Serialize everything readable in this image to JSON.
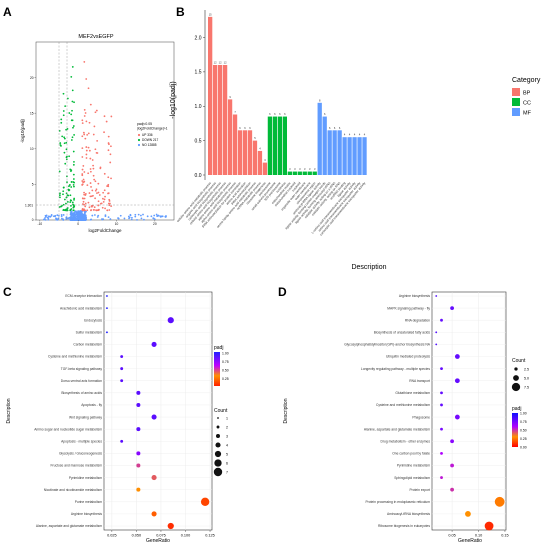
{
  "panel_letters": [
    "A",
    "B",
    "C",
    "D"
  ],
  "colors": {
    "bp": "#f8766d",
    "cc": "#00ba38",
    "mf": "#619cff",
    "up": "#f8766d",
    "down": "#00ba38",
    "no": "#619cff",
    "padj_gradient": [
      "#0000ff",
      "#7f00ff",
      "#ff00ff",
      "#ff8000",
      "#ff0000"
    ]
  },
  "chart_data": [
    {
      "type": "scatter",
      "panel": "A",
      "title": "MEF2vsEGFP",
      "xlabel": "log2FoldChange",
      "ylabel": "-log10(padj)",
      "xlim": [
        -11,
        25
      ],
      "ylim": [
        0,
        25
      ],
      "x_ticks": [
        "-10",
        "0",
        "10",
        "20"
      ],
      "y_ticks": [
        "0",
        "5",
        "10",
        "15",
        "20"
      ],
      "threshold_label": "1.301",
      "legend": {
        "title": "padj<0.05\n|log2FoldChange|>1",
        "items": [
          {
            "name": "UP 336",
            "color": "#f8766d"
          },
          {
            "name": "DOWN 217",
            "color": "#00ba38"
          },
          {
            "name": "NO 12885",
            "color": "#619cff"
          }
        ]
      }
    },
    {
      "type": "bar",
      "panel": "B",
      "xlabel": "Description",
      "ylabel": "-log10(padj)",
      "ylim": [
        0,
        2.4
      ],
      "y_ticks": [
        "0.0",
        "0.5",
        "1.0",
        "1.5",
        "2.0"
      ],
      "legend": {
        "title": "Category",
        "items": [
          {
            "name": "BP",
            "color": "#f8766d"
          },
          {
            "name": "CC",
            "color": "#00ba38"
          },
          {
            "name": "MF",
            "color": "#619cff"
          }
        ]
      },
      "bars": [
        {
          "label": "cellular amino acid metabolic process",
          "value": 2.3,
          "count": "15",
          "cat": "BP"
        },
        {
          "label": "organic acid biosynthetic process",
          "value": 1.6,
          "count": "12",
          "cat": "BP"
        },
        {
          "label": "carboxylic acid biosynthetic process",
          "value": 1.6,
          "count": "12",
          "cat": "BP"
        },
        {
          "label": "cellular amino acid biosynthetic process",
          "value": 1.6,
          "count": "12",
          "cat": "BP"
        },
        {
          "label": "alpha-amino acid metabolic process",
          "value": 1.1,
          "count": "9",
          "cat": "BP"
        },
        {
          "label": "alpha-amino acid biosynthetic process",
          "value": 0.88,
          "count": "7",
          "cat": "BP"
        },
        {
          "label": "tRNA aminoacylation for protein translation",
          "value": 0.65,
          "count": "6",
          "cat": "BP"
        },
        {
          "label": "amino acid activation",
          "value": 0.65,
          "count": "6",
          "cat": "BP"
        },
        {
          "label": "tRNA aminoacylation",
          "value": 0.65,
          "count": "6",
          "cat": "BP"
        },
        {
          "label": "serine family amino acid metabolic process",
          "value": 0.5,
          "count": "5",
          "cat": "BP"
        },
        {
          "label": "ncRNA metabolic process",
          "value": 0.35,
          "count": "4",
          "cat": "BP"
        },
        {
          "label": "ribosome biogenesis",
          "value": 0.18,
          "count": "3",
          "cat": "BP"
        },
        {
          "label": "preribosome",
          "value": 0.85,
          "count": "6",
          "cat": "CC"
        },
        {
          "label": "small-subunit processome",
          "value": 0.85,
          "count": "6",
          "cat": "CC"
        },
        {
          "label": "90S preribosome",
          "value": 0.85,
          "count": "6",
          "cat": "CC"
        },
        {
          "label": "nucleolus",
          "value": 0.85,
          "count": "6",
          "cat": "CC"
        },
        {
          "label": "mitochondrial matrix",
          "value": 0.05,
          "count": "3",
          "cat": "CC"
        },
        {
          "label": "mitochondrial nucleoid",
          "value": 0.05,
          "count": "3",
          "cat": "CC"
        },
        {
          "label": "nucleoid",
          "value": 0.05,
          "count": "3",
          "cat": "CC"
        },
        {
          "label": "organelle outer membrane",
          "value": 0.05,
          "count": "3",
          "cat": "CC"
        },
        {
          "label": "outer membrane",
          "value": 0.05,
          "count": "3",
          "cat": "CC"
        },
        {
          "label": "chromosomal region",
          "value": 0.05,
          "count": "3",
          "cat": "CC"
        },
        {
          "label": "aminoacyl-tRNA ligase activity",
          "value": 1.05,
          "count": "8",
          "cat": "MF"
        },
        {
          "label": "ligase activity, forming carbon-oxygen bonds",
          "value": 0.85,
          "count": "6",
          "cat": "MF"
        },
        {
          "label": "ligase activity, forming aminoacyl-tRNA",
          "value": 0.65,
          "count": "6",
          "cat": "MF"
        },
        {
          "label": "catalytic activity, acting on a tRNA",
          "value": 0.65,
          "count": "6",
          "cat": "MF"
        },
        {
          "label": "catalytic activity, acting on RNA",
          "value": 0.65,
          "count": "6",
          "cat": "MF"
        },
        {
          "label": "snoRNA binding",
          "value": 0.55,
          "count": "4",
          "cat": "MF"
        },
        {
          "label": "ligase activity",
          "value": 0.55,
          "count": "4",
          "cat": "MF"
        },
        {
          "label": "L-amino acid transmembrane transporter activity",
          "value": 0.55,
          "count": "4",
          "cat": "MF"
        },
        {
          "label": "amino acid transmembrane transporter activity",
          "value": 0.55,
          "count": "4",
          "cat": "MF"
        },
        {
          "label": "carboxylic acid transmembrane transporter activity",
          "value": 0.55,
          "count": "4",
          "cat": "MF"
        }
      ]
    },
    {
      "type": "scatter",
      "panel": "C",
      "xlabel": "GeneRatio",
      "ylabel": "Description",
      "xlim": [
        0.017,
        0.127
      ],
      "x_ticks": [
        0.025,
        0.05,
        0.075,
        0.1,
        0.125
      ],
      "x_tick_labels": [
        "0.025",
        "0.050",
        "0.075",
        "0.100",
        "0.125"
      ],
      "color_legend": {
        "title": "padj",
        "ticks": [
          "1.00",
          "0.75",
          "0.50",
          "0.25"
        ],
        "range": [
          0.15,
          1.0
        ]
      },
      "size_legend": {
        "title": "Count",
        "values": [
          1,
          2,
          3,
          4,
          5,
          6,
          7
        ]
      },
      "points": [
        {
          "term": "ECM-receptor interaction",
          "ratio": 0.02,
          "count": 1,
          "padj": 1.0
        },
        {
          "term": "Arachidonic acid metabolism",
          "ratio": 0.02,
          "count": 1,
          "padj": 1.0
        },
        {
          "term": "Endocytosis",
          "ratio": 0.085,
          "count": 5,
          "padj": 0.85
        },
        {
          "term": "Sulfur metabolism",
          "ratio": 0.02,
          "count": 1,
          "padj": 1.0
        },
        {
          "term": "Carbon metabolism",
          "ratio": 0.068,
          "count": 4,
          "padj": 0.85
        },
        {
          "term": "Cysteine and methionine metabolism",
          "ratio": 0.035,
          "count": 2,
          "padj": 0.85
        },
        {
          "term": "TGF-beta signaling pathway",
          "ratio": 0.035,
          "count": 2,
          "padj": 0.85
        },
        {
          "term": "Dorso-ventral axis formation",
          "ratio": 0.035,
          "count": 2,
          "padj": 0.85
        },
        {
          "term": "Biosynthesis of amino acids",
          "ratio": 0.052,
          "count": 3,
          "padj": 0.85
        },
        {
          "term": "Apoptosis - fly",
          "ratio": 0.052,
          "count": 3,
          "padj": 0.85
        },
        {
          "term": "Wnt signaling pathway",
          "ratio": 0.068,
          "count": 4,
          "padj": 0.85
        },
        {
          "term": "Amino sugar and nucleotide sugar metabolism",
          "ratio": 0.052,
          "count": 3,
          "padj": 0.85
        },
        {
          "term": "Apoptosis - multiple species",
          "ratio": 0.035,
          "count": 2,
          "padj": 0.85
        },
        {
          "term": "Glycolysis / Gluconeogenesis",
          "ratio": 0.052,
          "count": 3,
          "padj": 0.75
        },
        {
          "term": "Fructose and mannose metabolism",
          "ratio": 0.052,
          "count": 3,
          "padj": 0.55
        },
        {
          "term": "Pyrimidine metabolism",
          "ratio": 0.068,
          "count": 4,
          "padj": 0.5
        },
        {
          "term": "Nicotinate and nicotinamide metabolism",
          "ratio": 0.052,
          "count": 3,
          "padj": 0.4
        },
        {
          "term": "Purine metabolism",
          "ratio": 0.12,
          "count": 7,
          "padj": 0.25
        },
        {
          "term": "Arginine biosynthesis",
          "ratio": 0.068,
          "count": 4,
          "padj": 0.3
        },
        {
          "term": "Alanine, aspartate and glutamate metabolism",
          "ratio": 0.085,
          "count": 5,
          "padj": 0.2
        }
      ]
    },
    {
      "type": "scatter",
      "panel": "D",
      "xlabel": "GeneRatio",
      "ylabel": "Description",
      "xlim": [
        0.012,
        0.152
      ],
      "x_ticks": [
        0.05,
        0.1,
        0.15
      ],
      "x_tick_labels": [
        "0.05",
        "0.10",
        "0.15"
      ],
      "color_legend": {
        "title": "padj",
        "ticks": [
          "1.00",
          "0.75",
          "0.50",
          "0.25",
          "0.00"
        ],
        "range": [
          0.0,
          1.0
        ]
      },
      "size_legend": {
        "title": "Count",
        "values": [
          2.5,
          5.0,
          7.5
        ],
        "labels": [
          "2.5",
          "5.0",
          "7.5"
        ]
      },
      "points": [
        {
          "term": "Arginine biosynthesis",
          "ratio": 0.02,
          "count": 1,
          "padj": 0.85
        },
        {
          "term": "MAPK signaling pathway - fly",
          "ratio": 0.05,
          "count": 3,
          "padj": 0.8
        },
        {
          "term": "RNA degradation",
          "ratio": 0.03,
          "count": 2,
          "padj": 0.8
        },
        {
          "term": "Biosynthesis of unsaturated fatty acids",
          "ratio": 0.02,
          "count": 1,
          "padj": 0.85
        },
        {
          "term": "Glycosylphosphatidylinositol (GPI)-anchor biosynthesis NA",
          "ratio": 0.02,
          "count": 1,
          "padj": 0.85
        },
        {
          "term": "Ubiquitin mediated proteolysis",
          "ratio": 0.06,
          "count": 4,
          "padj": 0.8
        },
        {
          "term": "Longevity regulating pathway - multiple species",
          "ratio": 0.03,
          "count": 2,
          "padj": 0.8
        },
        {
          "term": "RNA transport",
          "ratio": 0.06,
          "count": 4,
          "padj": 0.8
        },
        {
          "term": "Glutathione metabolism",
          "ratio": 0.03,
          "count": 2,
          "padj": 0.8
        },
        {
          "term": "Cysteine and methionine metabolism",
          "ratio": 0.03,
          "count": 2,
          "padj": 0.8
        },
        {
          "term": "Phagosome",
          "ratio": 0.06,
          "count": 4,
          "padj": 0.75
        },
        {
          "term": "Alanine, aspartate and glutamate metabolism",
          "ratio": 0.03,
          "count": 2,
          "padj": 0.75
        },
        {
          "term": "Drug metabolism - other enzymes",
          "ratio": 0.05,
          "count": 3,
          "padj": 0.7
        },
        {
          "term": "One carbon pool by folate",
          "ratio": 0.03,
          "count": 2,
          "padj": 0.6
        },
        {
          "term": "Pyrimidine metabolism",
          "ratio": 0.05,
          "count": 3,
          "padj": 0.55
        },
        {
          "term": "Sphingolipid metabolism",
          "ratio": 0.03,
          "count": 2,
          "padj": 0.55
        },
        {
          "term": "Protein export",
          "ratio": 0.05,
          "count": 3,
          "padj": 0.5
        },
        {
          "term": "Protein processing in endoplasmic reticulum",
          "ratio": 0.14,
          "count": 9,
          "padj": 0.25
        },
        {
          "term": "Aminoacyl-tRNA biosynthesis",
          "ratio": 0.08,
          "count": 5,
          "padj": 0.3
        },
        {
          "term": "Ribosome biogenesis in eukaryotes",
          "ratio": 0.12,
          "count": 8,
          "padj": 0.05
        }
      ]
    }
  ]
}
